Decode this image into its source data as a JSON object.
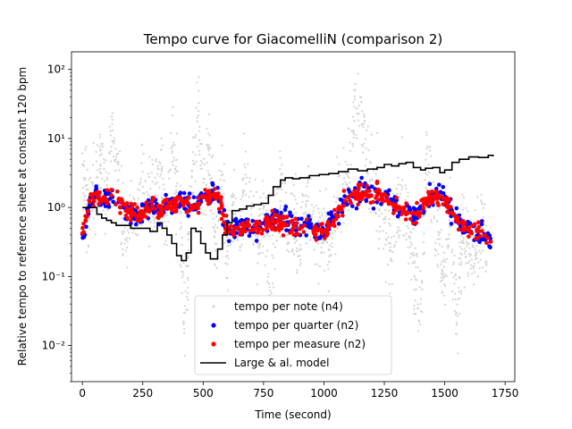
{
  "chart_data": {
    "type": "scatter",
    "title": "Tempo curve for GiacomelliN (comparison 2)",
    "xlabel": "Time (second)",
    "ylabel": "Relative tempo to reference sheet at constant 120 bpm",
    "xlim": [
      -45,
      1790
    ],
    "ylim": [
      0.003,
      180
    ],
    "yscale": "log",
    "grid": false,
    "legend_position": "lower center",
    "x_ticks": [
      0,
      250,
      500,
      750,
      1000,
      1250,
      1500,
      1750
    ],
    "x_tick_labels": [
      "0",
      "250",
      "500",
      "750",
      "1000",
      "1250",
      "1500",
      "1750"
    ],
    "y_ticks": [
      0.01,
      0.1,
      1,
      10,
      100
    ],
    "y_tick_labels": [
      "10⁻²",
      "10⁻¹",
      "10⁰",
      "10¹",
      "10²"
    ],
    "series": [
      {
        "name": "tempo per note (n4)",
        "kind": "scatter",
        "color": "#d3d3d3",
        "summary": [
          [
            0,
            4.2
          ],
          [
            25,
            0.8
          ],
          [
            50,
            1.6
          ],
          [
            75,
            4.0
          ],
          [
            100,
            1.8
          ],
          [
            125,
            13
          ],
          [
            150,
            2.5
          ],
          [
            175,
            0.3
          ],
          [
            200,
            1.2
          ],
          [
            225,
            0.6
          ],
          [
            250,
            2.0
          ],
          [
            275,
            0.8
          ],
          [
            300,
            1.5
          ],
          [
            325,
            3.0
          ],
          [
            350,
            0.5
          ],
          [
            375,
            8.0
          ],
          [
            400,
            1.0
          ],
          [
            425,
            0.03
          ],
          [
            450,
            2.0
          ],
          [
            475,
            20
          ],
          [
            500,
            1.5
          ],
          [
            525,
            8.0
          ],
          [
            550,
            0.3
          ],
          [
            575,
            2.0
          ],
          [
            600,
            0.2
          ],
          [
            625,
            1.2
          ],
          [
            650,
            0.5
          ],
          [
            675,
            3.0
          ],
          [
            700,
            0.8
          ],
          [
            725,
            0.3
          ],
          [
            750,
            1.0
          ],
          [
            775,
            0.07
          ],
          [
            800,
            0.5
          ],
          [
            825,
            3.0
          ],
          [
            850,
            0.4
          ],
          [
            875,
            0.8
          ],
          [
            900,
            0.2
          ],
          [
            925,
            1.5
          ],
          [
            950,
            0.7
          ],
          [
            975,
            0.3
          ],
          [
            1000,
            0.6
          ],
          [
            1025,
            0.2
          ],
          [
            1050,
            1.2
          ],
          [
            1100,
            2.0
          ],
          [
            1125,
            18
          ],
          [
            1150,
            40
          ],
          [
            1175,
            5.0
          ],
          [
            1200,
            2.5
          ],
          [
            1225,
            1.5
          ],
          [
            1250,
            0.6
          ],
          [
            1275,
            0.3
          ],
          [
            1300,
            0.8
          ],
          [
            1325,
            2.0
          ],
          [
            1350,
            0.5
          ],
          [
            1375,
            0.1
          ],
          [
            1400,
            0.04
          ],
          [
            1425,
            6.0
          ],
          [
            1450,
            1.2
          ],
          [
            1475,
            0.4
          ],
          [
            1500,
            0.1
          ],
          [
            1525,
            0.8
          ],
          [
            1550,
            0.02
          ],
          [
            1575,
            0.5
          ],
          [
            1600,
            0.3
          ],
          [
            1625,
            0.2
          ],
          [
            1650,
            0.4
          ],
          [
            1675,
            0.3
          ]
        ]
      },
      {
        "name": "tempo per quarter (n2)",
        "kind": "scatter",
        "color": "#0000ff",
        "summary": [
          [
            0,
            0.42
          ],
          [
            30,
            1.1
          ],
          [
            60,
            1.6
          ],
          [
            90,
            1.2
          ],
          [
            120,
            1.4
          ],
          [
            150,
            1.2
          ],
          [
            180,
            0.9
          ],
          [
            210,
            0.8
          ],
          [
            240,
            0.7
          ],
          [
            270,
            1.0
          ],
          [
            300,
            1.0
          ],
          [
            330,
            0.9
          ],
          [
            360,
            1.2
          ],
          [
            390,
            1.3
          ],
          [
            420,
            1.2
          ],
          [
            450,
            1.0
          ],
          [
            480,
            1.1
          ],
          [
            510,
            1.4
          ],
          [
            540,
            1.6
          ],
          [
            560,
            1.5
          ],
          [
            600,
            0.5
          ],
          [
            640,
            0.5
          ],
          [
            680,
            0.6
          ],
          [
            720,
            0.5
          ],
          [
            760,
            0.6
          ],
          [
            800,
            0.65
          ],
          [
            840,
            0.6
          ],
          [
            880,
            0.55
          ],
          [
            920,
            0.6
          ],
          [
            960,
            0.5
          ],
          [
            1000,
            0.45
          ],
          [
            1040,
            0.7
          ],
          [
            1100,
            1.4
          ],
          [
            1140,
            1.6
          ],
          [
            1180,
            1.5
          ],
          [
            1220,
            1.5
          ],
          [
            1260,
            1.4
          ],
          [
            1300,
            1.0
          ],
          [
            1340,
            0.8
          ],
          [
            1380,
            0.8
          ],
          [
            1420,
            1.2
          ],
          [
            1460,
            1.6
          ],
          [
            1500,
            1.4
          ],
          [
            1530,
            0.9
          ],
          [
            1560,
            0.6
          ],
          [
            1600,
            0.5
          ],
          [
            1640,
            0.45
          ],
          [
            1690,
            0.32
          ]
        ]
      },
      {
        "name": "tempo per measure (n2)",
        "kind": "scatter",
        "color": "#ff0000",
        "summary": [
          [
            0,
            0.42
          ],
          [
            30,
            1.2
          ],
          [
            60,
            1.5
          ],
          [
            90,
            1.3
          ],
          [
            120,
            1.5
          ],
          [
            150,
            1.3
          ],
          [
            180,
            0.9
          ],
          [
            210,
            0.8
          ],
          [
            240,
            0.75
          ],
          [
            270,
            1.0
          ],
          [
            300,
            0.95
          ],
          [
            330,
            0.9
          ],
          [
            360,
            1.1
          ],
          [
            390,
            1.25
          ],
          [
            420,
            1.15
          ],
          [
            450,
            1.05
          ],
          [
            480,
            1.1
          ],
          [
            510,
            1.45
          ],
          [
            540,
            1.55
          ],
          [
            560,
            1.5
          ],
          [
            600,
            0.5
          ],
          [
            640,
            0.5
          ],
          [
            680,
            0.55
          ],
          [
            720,
            0.5
          ],
          [
            760,
            0.6
          ],
          [
            800,
            0.6
          ],
          [
            840,
            0.55
          ],
          [
            880,
            0.55
          ],
          [
            920,
            0.55
          ],
          [
            960,
            0.5
          ],
          [
            1000,
            0.45
          ],
          [
            1040,
            0.65
          ],
          [
            1100,
            1.4
          ],
          [
            1140,
            1.55
          ],
          [
            1180,
            1.5
          ],
          [
            1220,
            1.5
          ],
          [
            1260,
            1.45
          ],
          [
            1300,
            1.0
          ],
          [
            1340,
            0.8
          ],
          [
            1380,
            0.8
          ],
          [
            1420,
            1.2
          ],
          [
            1460,
            1.5
          ],
          [
            1500,
            1.3
          ],
          [
            1530,
            0.85
          ],
          [
            1560,
            0.6
          ],
          [
            1600,
            0.5
          ],
          [
            1640,
            0.45
          ],
          [
            1690,
            0.32
          ]
        ]
      },
      {
        "name": "Large & al. model",
        "kind": "line",
        "color": "#000000",
        "points": [
          [
            0,
            1.0
          ],
          [
            40,
            1.0
          ],
          [
            60,
            0.8
          ],
          [
            80,
            0.7
          ],
          [
            100,
            0.65
          ],
          [
            120,
            0.6
          ],
          [
            140,
            0.55
          ],
          [
            170,
            0.55
          ],
          [
            200,
            0.5
          ],
          [
            240,
            0.5
          ],
          [
            280,
            0.45
          ],
          [
            310,
            0.6
          ],
          [
            330,
            0.5
          ],
          [
            350,
            0.4
          ],
          [
            370,
            0.3
          ],
          [
            390,
            0.2
          ],
          [
            410,
            0.17
          ],
          [
            430,
            0.22
          ],
          [
            450,
            0.5
          ],
          [
            470,
            0.45
          ],
          [
            490,
            0.3
          ],
          [
            510,
            0.22
          ],
          [
            530,
            0.18
          ],
          [
            560,
            0.25
          ],
          [
            580,
            0.4
          ],
          [
            600,
            0.6
          ],
          [
            620,
            0.9
          ],
          [
            650,
            0.95
          ],
          [
            680,
            1.05
          ],
          [
            710,
            1.1
          ],
          [
            740,
            1.15
          ],
          [
            770,
            1.5
          ],
          [
            790,
            2.0
          ],
          [
            820,
            2.5
          ],
          [
            840,
            2.7
          ],
          [
            870,
            2.6
          ],
          [
            900,
            2.7
          ],
          [
            940,
            2.9
          ],
          [
            980,
            3.0
          ],
          [
            1020,
            3.1
          ],
          [
            1060,
            3.3
          ],
          [
            1100,
            3.6
          ],
          [
            1140,
            3.4
          ],
          [
            1180,
            3.6
          ],
          [
            1220,
            3.8
          ],
          [
            1250,
            4.2
          ],
          [
            1280,
            4.0
          ],
          [
            1310,
            4.3
          ],
          [
            1340,
            4.5
          ],
          [
            1370,
            3.8
          ],
          [
            1400,
            3.5
          ],
          [
            1420,
            3.7
          ],
          [
            1450,
            3.8
          ],
          [
            1480,
            3.2
          ],
          [
            1500,
            3.5
          ],
          [
            1530,
            4.5
          ],
          [
            1560,
            5.0
          ],
          [
            1600,
            5.4
          ],
          [
            1640,
            5.3
          ],
          [
            1680,
            5.7
          ],
          [
            1700,
            5.5
          ]
        ]
      }
    ]
  }
}
